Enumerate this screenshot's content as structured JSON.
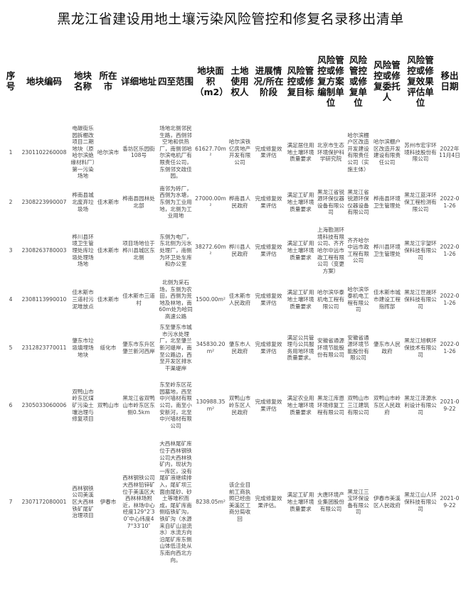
{
  "title": "黑龙江省建设用地土壤污染风险管控和修复名录移出清单",
  "headers": [
    "序号",
    "地块编码",
    "地块名称",
    "所在市",
    "详细地址",
    "四至范围",
    "地块面积（m2）",
    "土地使用权人",
    "进展情况/所在阶段",
    "风险管控或修复目标",
    "风险管控或修复方案编制单位",
    "风险管控或修复单位",
    "风险管控或修复委托人",
    "风险管控或修复效果评估单位",
    "移出日期"
  ],
  "rows": [
    [
      "1",
      "2301102260008",
      "电碳街乐园拆棚改项目二期地块（原哈尔滨绝缘材料厂）第一污染场地",
      "哈尔滨市",
      "香坊区乐园街108号",
      "场地北侧邻民生路，西侧邻空地和供热厂，南侧邻哈尔滨电机厂有限责任公司，东侧邻文政佳园。",
      "61627.70m²",
      "哈尔滨铁亿房地产开发有限公司",
      "完成修复效果评估",
      "满足居住用地土壤环境质量要求",
      "北京市生态环境保护科学研究院",
      "哈尔滨棚户区改造开发建设有限责任公司（实施主体）",
      "哈尔滨棚户区改造开发建设有限责任公司",
      "苏州市宏宇环境科技股份有限公司",
      "2022年11月4日"
    ],
    [
      "2",
      "2308223990007",
      "桦南县城北废弃垃圾场",
      "佳木斯市",
      "桦南县园林处北部",
      "南邻为砖厂，西侧为水塘，东侧为工业用地，北侧为工业用地",
      "27000.00m²",
      "桦南县人民政府",
      "完成修复效果评估",
      "满足工矿用地土壤环境质量要求",
      "黑龙江省锐源环保仪器设备有限公司",
      "黑龙江省锐源环保仪器设备有限公司",
      "桦南县环境卫生管理处",
      "黑龙江蓝洋环保工程检测有限公司",
      "2022-01-26"
    ],
    [
      "3",
      "2308263780003",
      "桦川县环境卫生管理处库垃圾处理场场地",
      "佳木斯市",
      "项目场地位于桦川县城区东北侧",
      "东侧为电厂，东北侧为污水处理厂，南侧为环卫处车库和办公室",
      "38272.60m²",
      "桦川县人民政府",
      "完成修复效果评估",
      "满足工矿用地土壤环境质量要求",
      "上海勘测环境科技有限公司、齐齐哈尔中远市政工程有限公司（变更方案）",
      "齐齐哈尔中远市政工程有限公司",
      "桦川县环境卫生管理处",
      "黑龙江宇望环保科技有限公司",
      "2022-01-26"
    ],
    [
      "4",
      "2308113990010",
      "佳木斯市三道村污泥堆放点",
      "佳木斯市",
      "佳木斯市三道村",
      "北侧为采石场，东侧为农田，西侧为荒地及林地，南60m处为哈同高速公路",
      "1500.00m²",
      "佳木斯市人民政府",
      "完成修复效果评估",
      "满足工矿用地土壤环境质量要求",
      "哈尔滨华泰机电工程有限公司",
      "哈尔滨华泰机电工程有限公司",
      "佳木斯市城市建设工程指挥部",
      "黑龙江世晟环保科技有限公司",
      "2022-01-26"
    ],
    [
      "5",
      "2312823770011",
      "肇东市垃圾填埋场地块",
      "绥化市",
      "肇东市东升区肇兰新河西岸",
      "东至肇东市城市污水处理厂，北至肇兰新河堤岸，南至公路边，西至开发区排水干渠堤岸",
      "345830.20m²",
      "肇东市人民政府",
      "完成修复效果评估",
      "满足公共管理与公共服务用地环境质量要求。",
      "安徽省通源环境节能股份有限公司",
      "安徽省通源环境节能股份有限公司",
      "肇东市人民政府",
      "黑龙江旭枫环保技术有限公司",
      "2022-01-26"
    ],
    [
      "6",
      "2305033060006",
      "双鸭山市岭东区煤矿污染土壤治理与修复项目",
      "双鸭山市",
      "黑龙江省双鸭山市岭东区东侧0.5km",
      "东至岭东区花园墓地，西至中兴墙材有限公司，南至小安新河，北至中兴墙材有限公司",
      "130988.35m²",
      "双鸭山市岭东区人民政府",
      "完成修复效果评估",
      "满足农业用地土壤环境质量要求",
      "黑龙江库恩环境修复工程有限公司",
      "双鸭山市三江建筑有限公司",
      "双鸭山市岭东区人民政府",
      "黑龙江泽源水利设计有限公司",
      "2021-09-22"
    ],
    [
      "7",
      "2307172080001",
      "西林钢铁公司美溪区大西林铁矿尾矿治理项目",
      "伊春市",
      "西林钢铁公司大西林铅锌矿位于美溪区大西林林场附近，林场中心经度129°2′30″中心纬度47°33′10″",
      "大西林尾矿库位于西林钢铁公司大西林铁矿内，现状为一库区，没有尾矿液继续排入，尾矿坝三面由尾砂、砂土等堆积而成，尾矿库南侧临铁矿沟，铁矿沟（水源来自矿山溢流水）水流方向沿尾矿库东侧山体低洼处从东南向西北方向。",
      "8238.05m²",
      "该企业目前工商执照已经由美溪区工商分局收回",
      "完成修复效果评估。",
      "满足工矿用地土壤环境质量要求",
      "大唐环境产业集团股份有限公司",
      "黑龙江三宝环保设备有限公司",
      "伊春市美溪区人民政府",
      "黑龙江山人环保科技有限公司",
      "2021-09-22"
    ]
  ]
}
